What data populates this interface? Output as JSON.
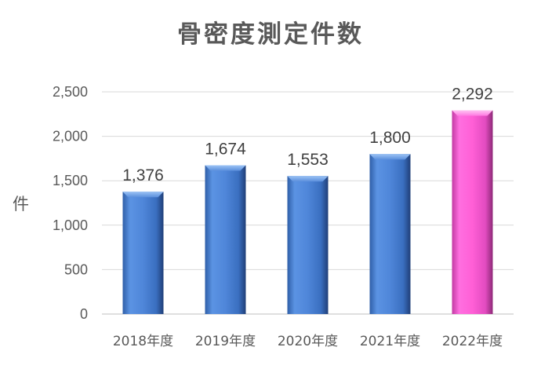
{
  "chart_data": {
    "type": "bar",
    "title": "骨密度測定件数",
    "ylabel": "件",
    "xlabel": "",
    "categories": [
      "2018年度",
      "2019年度",
      "2020年度",
      "2021年度",
      "2022年度"
    ],
    "values": [
      1376,
      1674,
      1553,
      1800,
      2292
    ],
    "value_labels": [
      "1,376",
      "1,674",
      "1,553",
      "1,800",
      "2,292"
    ],
    "ylim": [
      0,
      2500
    ],
    "yticks": [
      0,
      500,
      1000,
      1500,
      2000,
      2500
    ],
    "ytick_labels": [
      "0",
      "500",
      "1,000",
      "1,500",
      "2,000",
      "2,500"
    ],
    "grid": true,
    "legend": "none",
    "colors": {
      "default_bar": "#4f86d9",
      "highlight_bar": "#ff5fd6",
      "gridline": "#d9d9d9",
      "text": "#595959"
    },
    "highlight_index": 4
  }
}
